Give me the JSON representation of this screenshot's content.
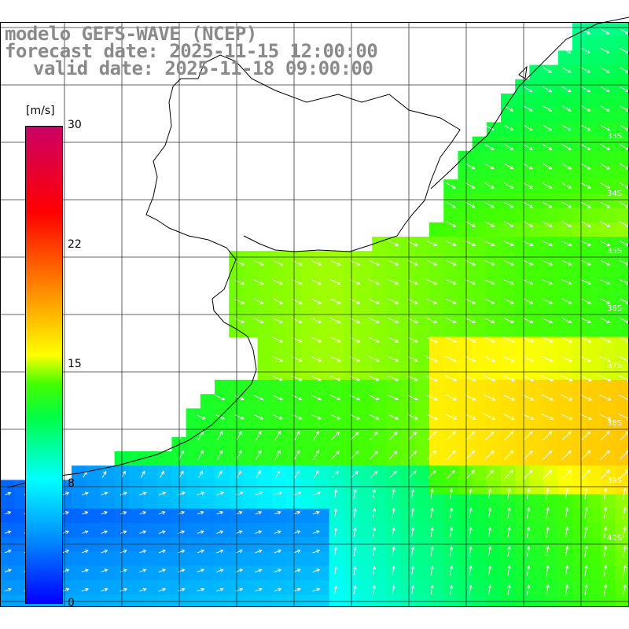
{
  "header": {
    "model_line": "modelo GEFS-WAVE (NCEP)",
    "forecast_line": "forecast date: 2025-11-15 12:00:00",
    "valid_line": "valid date: 2025-11-18 09:00:00"
  },
  "colorbar": {
    "unit": "[m/s]",
    "ticks": [
      {
        "label": "30",
        "value": 30
      },
      {
        "label": "22",
        "value": 22
      },
      {
        "label": "15",
        "value": 15
      },
      {
        "label": "8",
        "value": 8
      },
      {
        "label": "0",
        "value": 0
      }
    ]
  },
  "latitude_labels": [
    "33S",
    "34S",
    "35S",
    "36S",
    "37S",
    "38S",
    "39S",
    "40S"
  ],
  "colors": {
    "land": "#ffffff",
    "coast": "#000000",
    "grid": "#333333",
    "arrows": "#ffffff"
  }
}
